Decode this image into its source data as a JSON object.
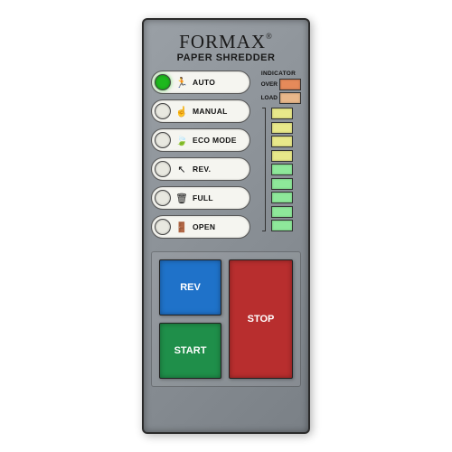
{
  "brand": "FORMAX",
  "subtitle": "PAPER SHREDDER",
  "modes": [
    {
      "label": "AUTO",
      "icon": "🏃",
      "icon_name": "run-icon",
      "led_on": true,
      "led_color": "#1db91d"
    },
    {
      "label": "MANUAL",
      "icon": "☝",
      "icon_name": "hand-icon",
      "led_on": false,
      "led_color": "#e8e8e0"
    },
    {
      "label": "ECO MODE",
      "icon": "🍃",
      "icon_name": "leaf-icon",
      "led_on": false,
      "led_color": "#e8e8e0"
    },
    {
      "label": "REV.",
      "icon": "↖",
      "icon_name": "reverse-icon",
      "led_on": false,
      "led_color": "#e8e8e0"
    },
    {
      "label": "FULL",
      "icon": "🗑",
      "icon_name": "bin-icon",
      "led_on": false,
      "led_color": "#e8e8e0"
    },
    {
      "label": "OPEN",
      "icon": "🚪",
      "icon_name": "door-icon",
      "led_on": false,
      "led_color": "#e8e8e0"
    }
  ],
  "indicator": {
    "title": "INDICATOR",
    "over_label": "OVER",
    "over_color": "#e58a5a",
    "load_label": "LOAD",
    "load_color": "#e8b78a",
    "bars": [
      "#e8e88a",
      "#e8e88a",
      "#e8e88a",
      "#e8e88a",
      "#8ee89a",
      "#8ee89a",
      "#8ee89a",
      "#8ee89a",
      "#8ee89a"
    ]
  },
  "buttons": {
    "rev": {
      "label": "REV",
      "bg": "#1f72c9"
    },
    "start": {
      "label": "START",
      "bg": "#1f8f4a"
    },
    "stop": {
      "label": "STOP",
      "bg": "#b82e2e"
    }
  },
  "colors": {
    "panel_bg": "#8a9096",
    "pill_bg": "#f5f5f0"
  }
}
